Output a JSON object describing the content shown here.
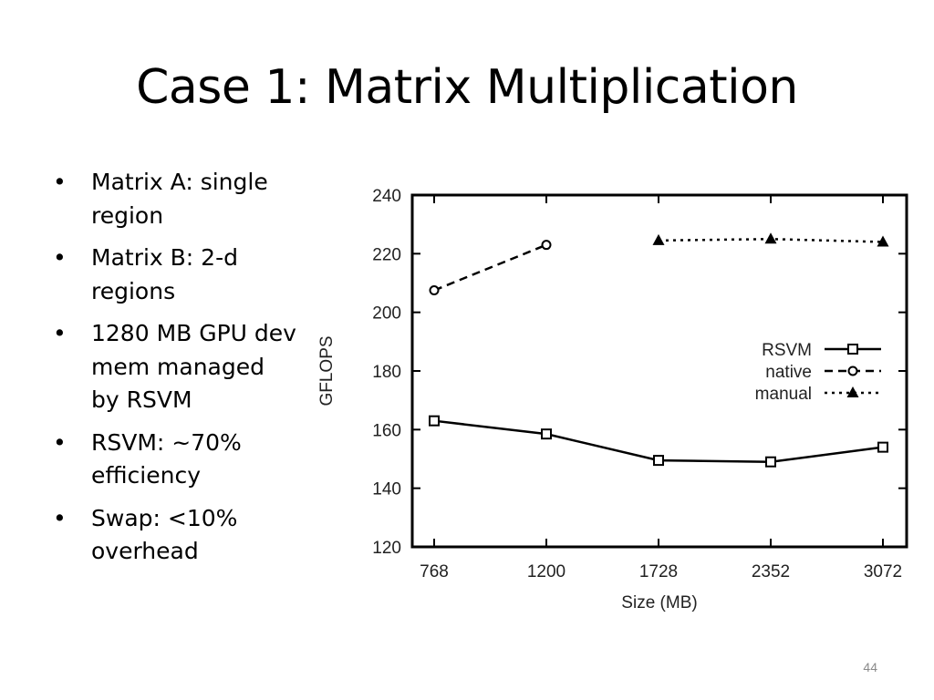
{
  "slide": {
    "title": "Case 1: Matrix Multiplication",
    "page_number": "44",
    "bullets": [
      "Matrix A: single region",
      "Matrix B: 2-d regions",
      "1280 MB GPU dev mem managed by RSVM",
      "RSVM: ~70% efficiency",
      "Swap: <10% overhead"
    ],
    "bullet_glyph": "•"
  },
  "chart_data": {
    "type": "line",
    "categories": [
      "768",
      "1200",
      "1728",
      "2352",
      "3072"
    ],
    "xlabel": "Size (MB)",
    "ylabel": "GFLOPS",
    "ylim": [
      120,
      240
    ],
    "yticks": [
      120,
      140,
      160,
      180,
      200,
      220,
      240
    ],
    "grid": false,
    "legend_position": "right-middle",
    "series": [
      {
        "name": "RSVM",
        "values": [
          163,
          158.5,
          149.5,
          149,
          154
        ],
        "marker": "square",
        "dash": "solid",
        "color": "#000000"
      },
      {
        "name": "native",
        "values": [
          207.5,
          223,
          null,
          null,
          null
        ],
        "marker": "circle",
        "dash": "dashed",
        "color": "#000000"
      },
      {
        "name": "manual",
        "values": [
          null,
          null,
          224.5,
          225,
          224
        ],
        "marker": "triangle",
        "dash": "dotted",
        "color": "#000000"
      }
    ]
  }
}
